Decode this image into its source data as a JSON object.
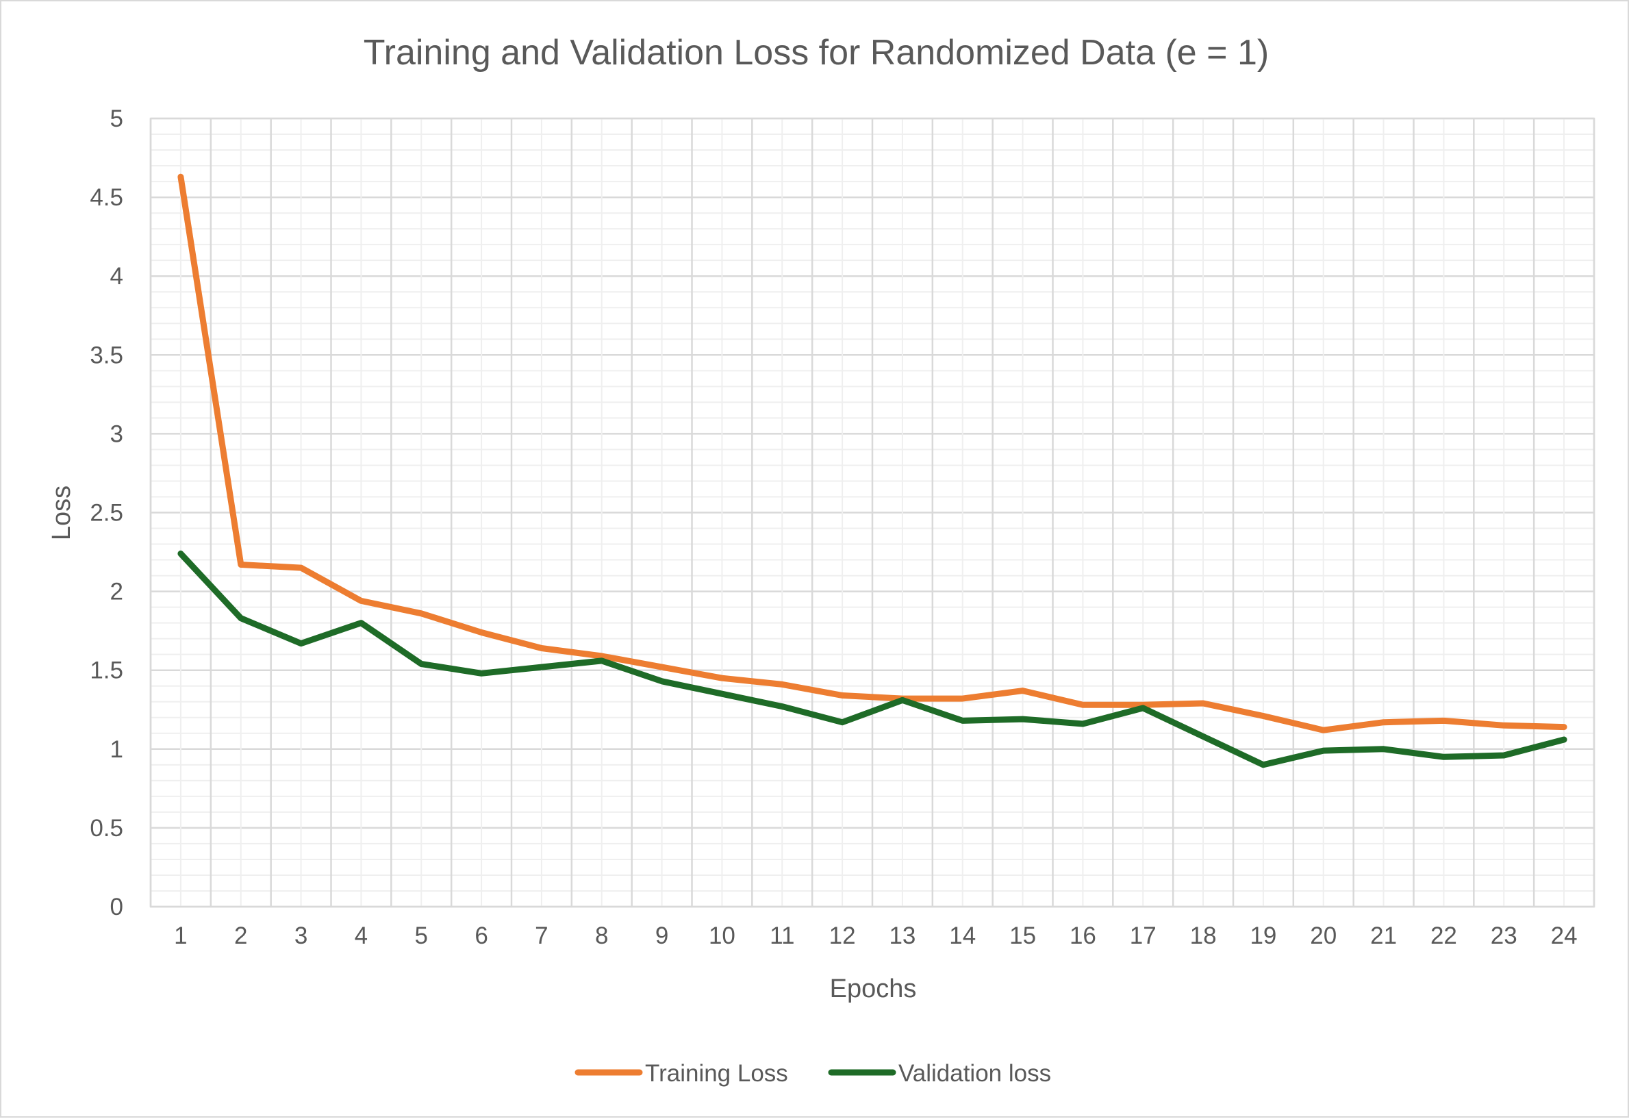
{
  "chart_data": {
    "type": "line",
    "title": "Training and Validation Loss for Randomized Data (e = 1)",
    "xlabel": "Epochs",
    "ylabel": "Loss",
    "ylim": [
      0,
      5
    ],
    "y_major_step": 0.5,
    "y_minor_step": 0.1,
    "grid": true,
    "legend_position": "bottom",
    "categories": [
      "1",
      "2",
      "3",
      "4",
      "5",
      "6",
      "7",
      "8",
      "9",
      "10",
      "11",
      "12",
      "13",
      "14",
      "15",
      "16",
      "17",
      "18",
      "19",
      "20",
      "21",
      "22",
      "23",
      "24"
    ],
    "y_ticks": [
      "0",
      "0.5",
      "1",
      "1.5",
      "2",
      "2.5",
      "3",
      "3.5",
      "4",
      "4.5",
      "5"
    ],
    "series": [
      {
        "name": "Training Loss",
        "color": "#ED7D31",
        "values": [
          4.63,
          2.17,
          2.15,
          1.94,
          1.86,
          1.74,
          1.64,
          1.59,
          1.52,
          1.45,
          1.41,
          1.34,
          1.32,
          1.32,
          1.37,
          1.28,
          1.28,
          1.29,
          1.21,
          1.12,
          1.17,
          1.18,
          1.15,
          1.14
        ]
      },
      {
        "name": "Validation loss",
        "color": "#1E6B27",
        "values": [
          2.24,
          1.83,
          1.67,
          1.8,
          1.54,
          1.48,
          1.52,
          1.56,
          1.43,
          1.35,
          1.27,
          1.17,
          1.31,
          1.18,
          1.19,
          1.16,
          1.26,
          1.08,
          0.9,
          0.99,
          1.0,
          0.95,
          0.96,
          1.06
        ]
      }
    ]
  }
}
